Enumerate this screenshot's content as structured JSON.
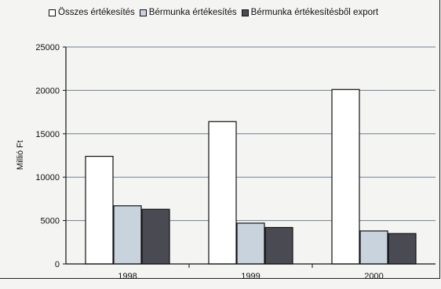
{
  "chart_data": {
    "type": "bar",
    "categories": [
      "1998",
      "1999",
      "2000"
    ],
    "series": [
      {
        "name": "Összes értékesítés",
        "values": [
          12400,
          16400,
          20100
        ],
        "color": "#ffffff"
      },
      {
        "name": "Bérmunka értékesítés",
        "values": [
          6700,
          4700,
          3800
        ],
        "color": "#c9d3de"
      },
      {
        "name": "Bérmunka értékesítésből export",
        "values": [
          6300,
          4200,
          3500
        ],
        "color": "#4a4a52"
      }
    ],
    "ylabel": "Millió Ft",
    "xlabel": "",
    "ylim": [
      0,
      25000
    ],
    "yticks": [
      0,
      5000,
      10000,
      15000,
      20000,
      25000
    ],
    "grid": true,
    "legend_position": "top"
  }
}
